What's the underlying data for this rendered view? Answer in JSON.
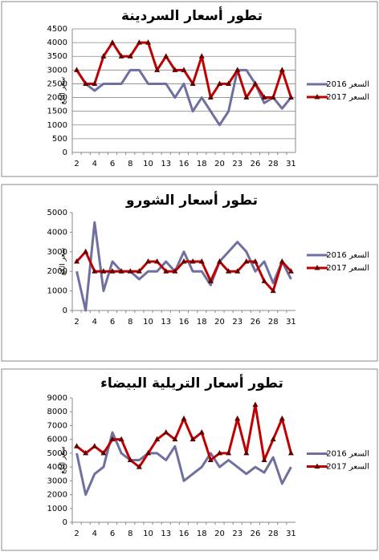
{
  "chart_data": [
    {
      "type": "line",
      "title": "تطور أسعار السردينة",
      "y_label": "سعر الكغ",
      "categories": [
        "2",
        null,
        "4",
        null,
        "6",
        null,
        "8",
        null,
        "10",
        null,
        "13",
        null,
        "16",
        null,
        "18",
        null,
        "20",
        null,
        "23",
        null,
        "26",
        null,
        "28",
        null,
        "31"
      ],
      "ylim": [
        0,
        4500
      ],
      "yticks": [
        0,
        500,
        1000,
        1500,
        2000,
        2500,
        3000,
        3500,
        4000,
        4500
      ],
      "grid": true,
      "series": [
        {
          "name": "2016 السعر",
          "color": "#6f6fa0",
          "marker": "none",
          "values": [
            3000,
            2500,
            2250,
            2500,
            2500,
            2500,
            3000,
            3000,
            2500,
            2500,
            2500,
            2000,
            2500,
            1500,
            2000,
            1500,
            1000,
            1500,
            3000,
            3000,
            2500,
            1800,
            2000,
            1600,
            2000
          ]
        },
        {
          "name": "2017 السعر",
          "color": "#c00000",
          "marker": "triangle",
          "values": [
            3000,
            2500,
            2500,
            3500,
            4000,
            3500,
            3500,
            4000,
            4000,
            3000,
            3500,
            3000,
            3000,
            2500,
            3500,
            2000,
            2500,
            2500,
            3000,
            2000,
            2500,
            2000,
            2000,
            3000,
            2000
          ]
        }
      ]
    },
    {
      "type": "line",
      "title": "تطور أسعار الشورو",
      "y_label": "سعر الكغ",
      "categories": [
        "2",
        null,
        "4",
        null,
        "6",
        null,
        "8",
        null,
        "10",
        null,
        "13",
        null,
        "16",
        null,
        "18",
        null,
        "20",
        null,
        "23",
        null,
        "26",
        null,
        "28",
        null,
        "31"
      ],
      "ylim": [
        0,
        5000
      ],
      "yticks": [
        0,
        1000,
        2000,
        3000,
        4000,
        5000
      ],
      "grid": false,
      "series": [
        {
          "name": "2016 السعر",
          "color": "#6f6fa0",
          "marker": "none",
          "values": [
            2000,
            0,
            4500,
            1000,
            2500,
            2000,
            2000,
            1600,
            2000,
            2000,
            2500,
            2000,
            3000,
            2000,
            2000,
            1300,
            2500,
            3000,
            3500,
            3000,
            2000,
            2500,
            1400,
            2500,
            1600
          ]
        },
        {
          "name": "2017 السعر",
          "color": "#c00000",
          "marker": "triangle",
          "values": [
            2500,
            3000,
            2000,
            2000,
            2000,
            2000,
            2000,
            2000,
            2500,
            2500,
            2000,
            2000,
            2500,
            2500,
            2500,
            1500,
            2500,
            2000,
            2000,
            2500,
            2500,
            1500,
            1000,
            2500,
            2000
          ]
        }
      ]
    },
    {
      "type": "line",
      "title": "تطور أسعار التريلية البيضاء",
      "y_label": "سعر الكغ",
      "categories": [
        "2",
        null,
        "4",
        null,
        "6",
        null,
        "8",
        null,
        "10",
        null,
        "13",
        null,
        "16",
        null,
        "18",
        null,
        "20",
        null,
        "23",
        null,
        "26",
        null,
        "28",
        null,
        "31"
      ],
      "ylim": [
        0,
        9000
      ],
      "yticks": [
        0,
        1000,
        2000,
        3000,
        4000,
        5000,
        6000,
        7000,
        8000,
        9000
      ],
      "grid": false,
      "series": [
        {
          "name": "2016 السعر",
          "color": "#6f6fa0",
          "marker": "none",
          "values": [
            5000,
            2000,
            3500,
            4000,
            6500,
            5000,
            4500,
            4500,
            5000,
            5000,
            4500,
            5500,
            3000,
            3500,
            4000,
            5000,
            4000,
            4500,
            4000,
            3500,
            4000,
            3600,
            4700,
            2800,
            4000
          ]
        },
        {
          "name": "2017 السعر",
          "color": "#c00000",
          "marker": "triangle",
          "values": [
            5500,
            5000,
            5500,
            5000,
            6000,
            6000,
            4500,
            4000,
            5000,
            6000,
            6500,
            6000,
            7500,
            6000,
            6500,
            4500,
            5000,
            5000,
            7500,
            5000,
            8500,
            4500,
            6000,
            7500,
            5000
          ]
        }
      ]
    }
  ]
}
